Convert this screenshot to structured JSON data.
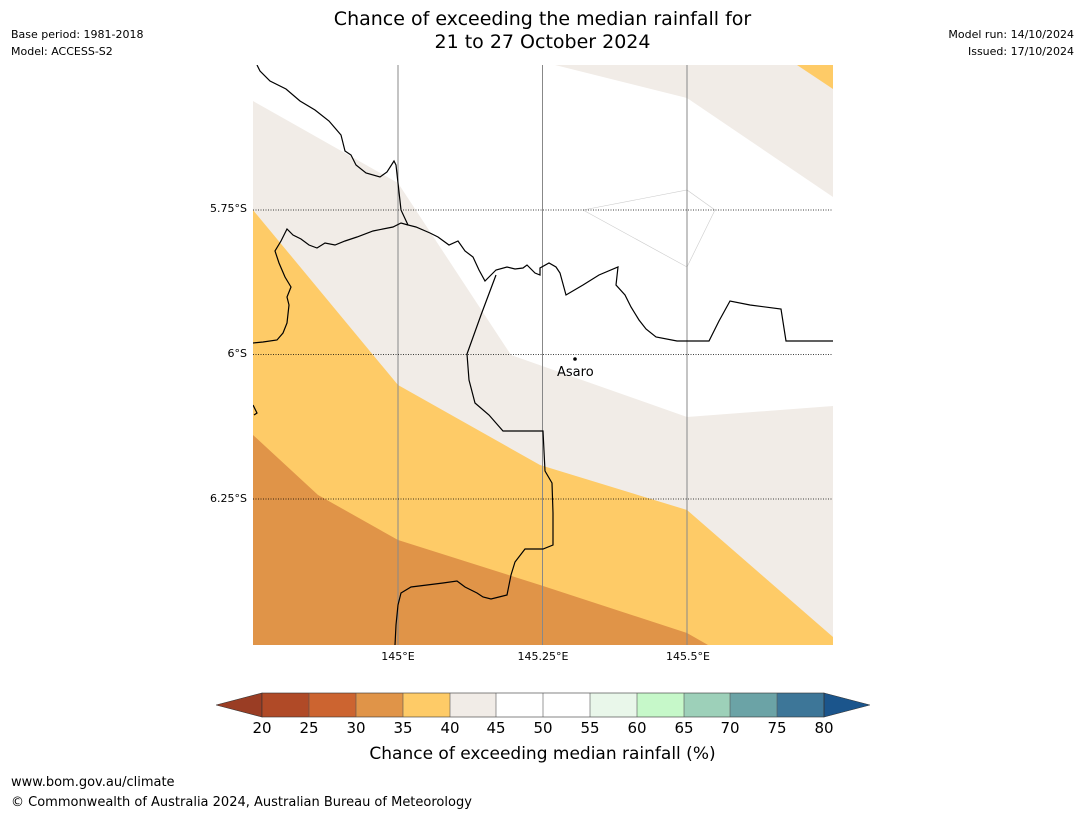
{
  "title": {
    "line1": "Chance of exceeding the median rainfall for",
    "line2": "21 to 27 October 2024"
  },
  "meta_left": {
    "base_period": "Base period: 1981-2018",
    "model": "Model: ACCESS-S2"
  },
  "meta_right": {
    "model_run": "Model run: 14/10/2024",
    "issued": "Issued: 17/10/2024"
  },
  "map": {
    "lat_labels": [
      "5.75°S",
      "6°S",
      "6.25°S"
    ],
    "lon_labels": [
      "145°E",
      "145.25°E",
      "145.5°E"
    ],
    "place": {
      "name": "Asaro",
      "lat": -6.01,
      "lon": 145.3
    },
    "zone_colors": {
      "20-25": "#b04a27",
      "25-30": "#cc6430",
      "30-35": "#e09448",
      "35-40": "#fecb67",
      "40-45": "#f1ece7",
      "45-55": "#ffffff",
      "55-60": "#e9f7ea",
      "60-65": "#c6f8c9",
      "65-70": "#9dd0b9",
      "70-75": "#6ba3a6",
      "75-80": "#3d7698",
      "extend_low": "#9a3d24",
      "extend_high": "#1b558c"
    }
  },
  "colorbar": {
    "ticks": [
      "20",
      "25",
      "30",
      "35",
      "40",
      "45",
      "50",
      "55",
      "60",
      "65",
      "70",
      "75",
      "80"
    ],
    "label": "Chance of exceeding median rainfall (%)"
  },
  "footer": {
    "url": "www.bom.gov.au/climate",
    "copyright": "© Commonwealth of Australia 2024, Australian Bureau of Meteorology"
  }
}
